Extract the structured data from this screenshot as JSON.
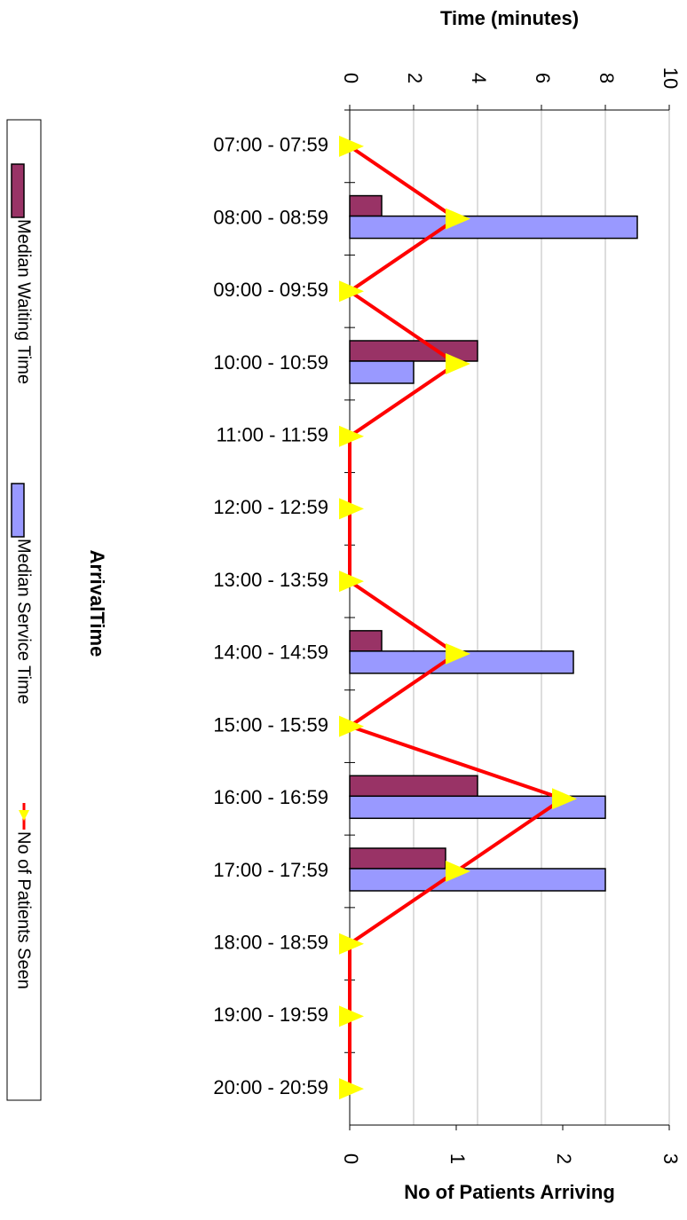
{
  "chart_data": {
    "type": "bar",
    "x_title": "Time (minutes)",
    "x2_title": "No of Patients Arriving",
    "y_title": "ArrivalTime",
    "categories": [
      "07:00 - 07:59",
      "08:00 - 08:59",
      "09:00 - 09:59",
      "10:00 - 10:59",
      "11:00 - 11:59",
      "12:00 - 12:59",
      "13:00 - 13:59",
      "14:00 - 14:59",
      "15:00 - 15:59",
      "16:00 - 16:59",
      "17:00 - 17:59",
      "18:00 - 18:59",
      "19:00 - 19:59",
      "20:00 - 20:59"
    ],
    "series": [
      {
        "name": "Median Waiting Time",
        "color": "#993366",
        "values": [
          null,
          1,
          null,
          4,
          null,
          null,
          null,
          1,
          null,
          4,
          3,
          null,
          null,
          null
        ]
      },
      {
        "name": "Median Service Time",
        "color": "#9999ff",
        "values": [
          null,
          9,
          null,
          2,
          null,
          null,
          null,
          7,
          null,
          8,
          8,
          null,
          null,
          null
        ]
      },
      {
        "name": "No of Patients Seen",
        "type": "line",
        "axis": "x2",
        "color": "#ff0000",
        "marker_color": "#ffff00",
        "values": [
          0,
          1,
          0,
          1,
          0,
          0,
          0,
          1,
          0,
          2,
          1,
          0,
          0,
          0
        ]
      }
    ],
    "xlim": [
      0,
      10
    ],
    "xticks": [
      0,
      2,
      4,
      6,
      8,
      10
    ],
    "x2lim": [
      0,
      3
    ],
    "x2ticks": [
      0,
      1,
      2,
      3
    ],
    "grid": true,
    "legend": "left"
  }
}
